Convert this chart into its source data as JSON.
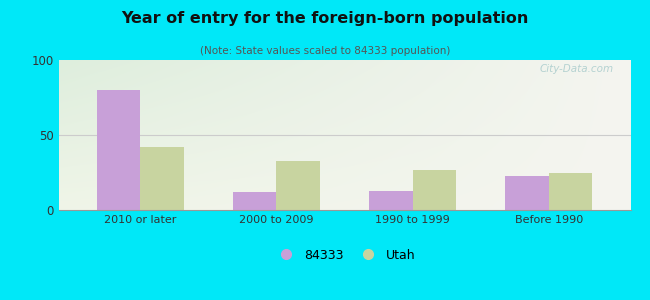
{
  "title": "Year of entry for the foreign-born population",
  "subtitle": "(Note: State values scaled to 84333 population)",
  "categories": [
    "2010 or later",
    "2000 to 2009",
    "1990 to 1999",
    "Before 1990"
  ],
  "values_84333": [
    80,
    12,
    13,
    23
  ],
  "values_utah": [
    42,
    33,
    27,
    25
  ],
  "color_84333": "#c8a0d8",
  "color_utah": "#c8d4a0",
  "background_outer": "#00e8f8",
  "background_inner_topleft": "#deeedd",
  "background_inner_topright": "#f5f5f0",
  "background_inner_bottom": "#f0f5e8",
  "ylim": [
    0,
    100
  ],
  "yticks": [
    0,
    50,
    100
  ],
  "watermark": "City-Data.com",
  "legend_84333": "84333",
  "legend_utah": "Utah",
  "bar_width": 0.32
}
